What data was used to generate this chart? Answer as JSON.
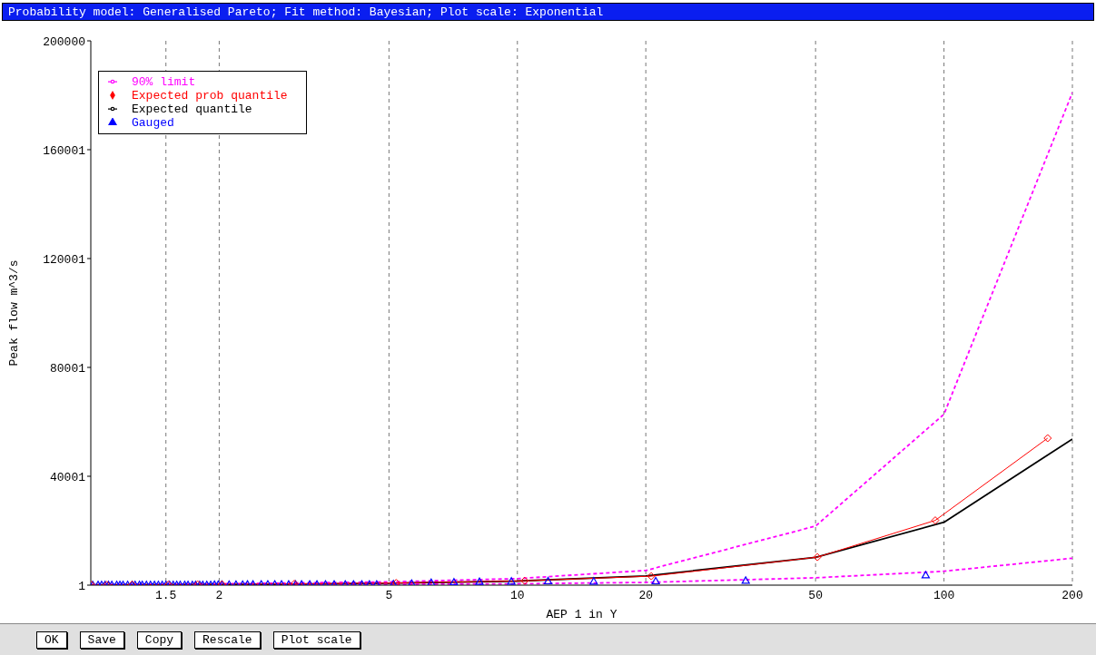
{
  "chart_data": {
    "type": "line",
    "title": "Probability model: Generalised Pareto; Fit method: Bayesian; Plot scale: Exponential",
    "xlabel": "AEP 1 in Y",
    "ylabel": "Peak flow m^3/s",
    "log": "x",
    "grid": "x",
    "legend": "top left",
    "xlim": [
      1,
      200
    ],
    "xticks": [
      1.5,
      2,
      5,
      10,
      20,
      50,
      100,
      200
    ],
    "ylim": [
      1,
      200000
    ],
    "yticks": [
      1,
      40001,
      80001,
      120001,
      160001,
      200000
    ],
    "annotations": [
      "OK",
      "Save",
      "Copy",
      "Rescale",
      "Plot scale"
    ],
    "series": [
      {
        "name": "Gauged",
        "type": "scatter",
        "color": "#0000ff",
        "marker": "triangle",
        "x": [
          1.01,
          1.04,
          1.06,
          1.08,
          1.1,
          1.12,
          1.15,
          1.17,
          1.19,
          1.22,
          1.25,
          1.27,
          1.3,
          1.32,
          1.35,
          1.38,
          1.41,
          1.44,
          1.47,
          1.5,
          1.53,
          1.56,
          1.59,
          1.62,
          1.66,
          1.69,
          1.73,
          1.76,
          1.8,
          1.83,
          1.87,
          1.91,
          1.95,
          1.99,
          2.03,
          2.11,
          2.19,
          2.27,
          2.33,
          2.4,
          2.51,
          2.6,
          2.7,
          2.8,
          2.91,
          3.02,
          3.12,
          3.26,
          3.39,
          3.55,
          3.72,
          3.95,
          4.13,
          4.32,
          4.5,
          4.68,
          5.12,
          5.65,
          6.28,
          7.1,
          8.15,
          9.68,
          11.8,
          15.1,
          21.1,
          34.3,
          90.6
        ],
        "values": [
          100,
          100,
          100,
          100,
          100,
          100,
          100,
          100,
          100,
          100,
          100,
          100,
          100,
          100,
          100,
          100,
          100,
          100,
          100,
          100,
          100,
          100,
          100,
          100,
          100,
          100,
          100,
          100,
          100,
          100,
          100,
          100,
          200,
          200,
          200,
          200,
          200,
          200,
          300,
          300,
          300,
          300,
          300,
          300,
          300,
          300,
          300,
          300,
          300,
          300,
          300,
          300,
          300,
          300,
          300,
          300,
          400,
          600,
          900,
          1100,
          1300,
          1400,
          1500,
          1400,
          1500,
          1700,
          3700
        ]
      },
      {
        "name": "Expected quantile",
        "color": "#000000",
        "marker": "none",
        "line_style": "solid",
        "x": [
          1.003,
          1.5,
          2,
          3,
          5,
          10,
          20,
          50,
          100,
          200
        ],
        "values": [
          100,
          200,
          300,
          400,
          700,
          1500,
          3400,
          10200,
          23100,
          53700
        ]
      },
      {
        "name": "90% limit",
        "color": "#ff00ff",
        "marker": "none",
        "line_style": "dashed",
        "x": [
          1.003,
          2,
          5,
          10,
          20,
          50,
          100,
          200
        ],
        "values": [
          100,
          500,
          1200,
          2400,
          5400,
          21700,
          62800,
          181000
        ]
      },
      {
        "color": "#ff00ff",
        "marker": "none",
        "line_style": "dashed",
        "x": [
          1.003,
          2,
          5,
          10,
          20,
          50,
          100,
          200
        ],
        "values": [
          100,
          100,
          300,
          500,
          1000,
          2700,
          5100,
          9900
        ]
      },
      {
        "name": "Expected prob quantile",
        "color": "#ff0000",
        "marker": "diamond",
        "line_style": "solid",
        "x": [
          1.003,
          1.09,
          1.25,
          1.52,
          1.78,
          2.03,
          3.0,
          5.2,
          10.4,
          20.6,
          50.5,
          95.4,
          175
        ],
        "values": [
          100,
          100,
          200,
          200,
          300,
          300,
          500,
          800,
          1600,
          3300,
          10300,
          23800,
          54000
        ]
      }
    ]
  }
}
